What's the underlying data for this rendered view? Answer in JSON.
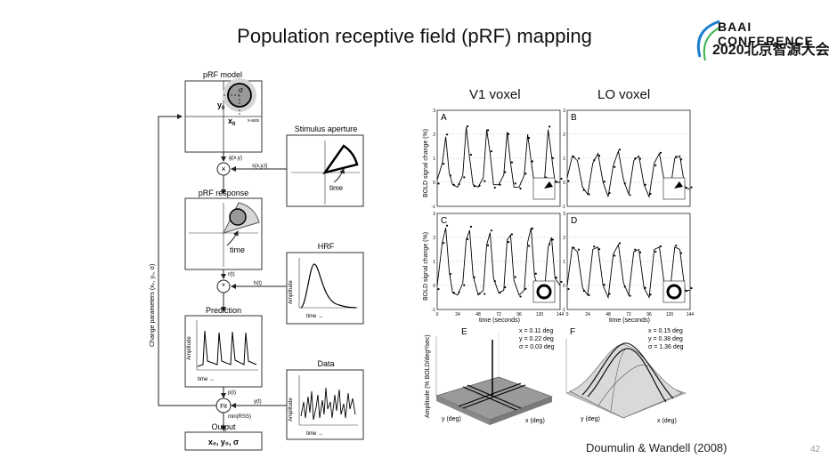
{
  "slide": {
    "title": "Population receptive field (pRF) mapping",
    "citation": "Doumulin & Wandell (2008)",
    "page_number": "42"
  },
  "logo": {
    "line1": "CONFERENCE",
    "line1_prefix": "BAAI",
    "line2": "2020北京智源大会"
  },
  "diagram": {
    "prf_model": "pRF model",
    "y0": "y",
    "x0": "x",
    "sub0": "0",
    "sigma": "σ",
    "y_axis": "y-axis",
    "x_axis": "x-axis",
    "gxy": "g(x,y)",
    "sxyt": "s(x,y,t)",
    "stimulus_aperture": "Stimulus aperture",
    "time": "time",
    "prf_response": "pRF response",
    "rt": "r(t)",
    "ht": "h(t)",
    "hrf": "HRF",
    "amplitude": "Amplitude",
    "prediction": "Prediction",
    "pt": "p(t)",
    "yt": "y(t)",
    "fit": "Fit",
    "min_rss": "min(RSS)",
    "data": "Data",
    "output": "Output",
    "output_value": "x₀, y₀, σ",
    "change_params": "Change parameters (x₀, y₀, σ)",
    "time_arrow": "time →"
  },
  "figure": {
    "v1_title": "V1 voxel",
    "lo_title": "LO voxel",
    "panels": [
      "A",
      "B",
      "C",
      "D",
      "E",
      "F"
    ],
    "ylabel_top": "BOLD signal change (%)",
    "ylabel_bottom": "Amplitude (% BOLD/deg²/sec)",
    "xlabel": "time (seconds)",
    "xticks": [
      "0",
      "24",
      "48",
      "72",
      "96",
      "120",
      "144"
    ],
    "yticks": [
      "-1",
      "0",
      "1",
      "2",
      "3"
    ],
    "E_params": [
      "x = 0.11 deg",
      "y = 0.22 deg",
      "σ = 0.03 deg"
    ],
    "F_params": [
      "x = 0.15 deg",
      "y = 0.38 deg",
      "σ = 1.36 deg"
    ],
    "y_deg": "y (deg)",
    "x_deg": "x (deg)"
  },
  "chart_data": [
    {
      "type": "line",
      "panel": "A",
      "title": "V1 voxel",
      "xlabel": "",
      "ylabel": "BOLD signal change (%)",
      "xlim": [
        0,
        144
      ],
      "ylim": [
        -1,
        3
      ],
      "series": [
        {
          "x": [
            0,
            6,
            10,
            14,
            18,
            24,
            30,
            34,
            38,
            42,
            48,
            54,
            58,
            62,
            66,
            72,
            78,
            82,
            86,
            90,
            96,
            102,
            106,
            110,
            114,
            120,
            126,
            130,
            134,
            138,
            144
          ],
          "values": [
            0.1,
            0.8,
            1.9,
            0.4,
            -0.1,
            -0.2,
            0.3,
            2.3,
            1.0,
            -0.1,
            -0.2,
            0.2,
            2.2,
            1.2,
            -0.1,
            -0.1,
            0.3,
            2.1,
            0.8,
            -0.2,
            -0.2,
            0.3,
            2.0,
            0.9,
            -0.1,
            -0.2,
            0.2,
            2.2,
            1.1,
            0.0,
            0.0
          ]
        }
      ]
    },
    {
      "type": "line",
      "panel": "B",
      "title": "LO voxel",
      "xlabel": "",
      "ylabel": "",
      "xlim": [
        0,
        144
      ],
      "ylim": [
        -1,
        3
      ],
      "series": [
        {
          "x": [
            0,
            6,
            12,
            18,
            24,
            30,
            36,
            42,
            48,
            54,
            60,
            66,
            72,
            78,
            84,
            90,
            96,
            102,
            108,
            114,
            120,
            126,
            132,
            138,
            144
          ],
          "values": [
            0.2,
            1.1,
            0.9,
            -0.2,
            -0.5,
            0.8,
            1.2,
            0.0,
            -0.6,
            0.7,
            1.3,
            0.1,
            -0.5,
            0.9,
            1.1,
            -0.1,
            -0.6,
            0.8,
            1.2,
            0.0,
            -0.5,
            1.0,
            1.1,
            -0.2,
            -0.3
          ]
        }
      ]
    },
    {
      "type": "line",
      "panel": "C",
      "title": "",
      "xlabel": "time (seconds)",
      "ylabel": "BOLD signal change (%)",
      "xlim": [
        0,
        144
      ],
      "ylim": [
        -1,
        3
      ],
      "series": [
        {
          "x": [
            0,
            6,
            10,
            14,
            18,
            24,
            30,
            34,
            38,
            42,
            48,
            54,
            58,
            62,
            66,
            72,
            78,
            82,
            86,
            90,
            96,
            102,
            106,
            110,
            114,
            120,
            126,
            130,
            134,
            138,
            144
          ],
          "values": [
            0.0,
            1.8,
            2.4,
            0.6,
            -0.3,
            -0.4,
            0.1,
            1.9,
            2.3,
            0.4,
            -0.4,
            -0.2,
            1.7,
            2.2,
            0.3,
            -0.3,
            -0.2,
            1.9,
            2.1,
            0.2,
            -0.4,
            -0.2,
            1.8,
            2.4,
            0.4,
            -0.3,
            -0.1,
            1.6,
            2.0,
            0.3,
            0.0
          ]
        }
      ]
    },
    {
      "type": "line",
      "panel": "D",
      "title": "",
      "xlabel": "time (seconds)",
      "ylabel": "",
      "xlim": [
        0,
        144
      ],
      "ylim": [
        -1,
        3
      ],
      "series": [
        {
          "x": [
            0,
            6,
            12,
            18,
            24,
            30,
            36,
            42,
            48,
            54,
            60,
            66,
            72,
            78,
            84,
            90,
            96,
            102,
            108,
            114,
            120,
            126,
            132,
            138,
            144
          ],
          "values": [
            0.0,
            1.6,
            1.4,
            -0.1,
            -0.4,
            1.5,
            1.6,
            0.0,
            -0.5,
            1.3,
            1.7,
            0.1,
            -0.4,
            1.4,
            1.5,
            -0.1,
            -0.5,
            1.5,
            1.6,
            0.0,
            -0.4,
            1.6,
            1.5,
            -0.2,
            -0.2
          ]
        }
      ]
    }
  ]
}
